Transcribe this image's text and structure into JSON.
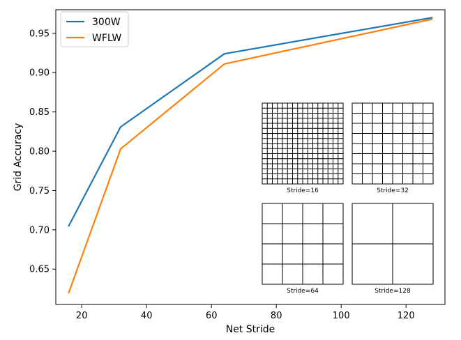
{
  "chart_data": {
    "type": "line",
    "title": "",
    "xlabel": "Net Stride",
    "ylabel": "Grid Accuracy",
    "xlim": [
      12,
      132
    ],
    "ylim": [
      0.605,
      0.98
    ],
    "xticks": [
      20,
      40,
      60,
      80,
      100,
      120
    ],
    "yticks": [
      0.65,
      0.7,
      0.75,
      0.8,
      0.85,
      0.9,
      0.95
    ],
    "x": [
      16,
      32,
      64,
      128
    ],
    "series": [
      {
        "name": "300W",
        "color": "#1f77b4",
        "values": [
          0.705,
          0.831,
          0.924,
          0.97
        ]
      },
      {
        "name": "WFLW",
        "color": "#ff7f0e",
        "values": [
          0.62,
          0.803,
          0.911,
          0.968
        ]
      }
    ],
    "legend_position": "top-left",
    "grid": false,
    "insets": [
      {
        "caption": "Stride=16",
        "divisions": 16
      },
      {
        "caption": "Stride=32",
        "divisions": 8
      },
      {
        "caption": "Stride=64",
        "divisions": 4
      },
      {
        "caption": "Stride=128",
        "divisions": 2
      }
    ]
  }
}
